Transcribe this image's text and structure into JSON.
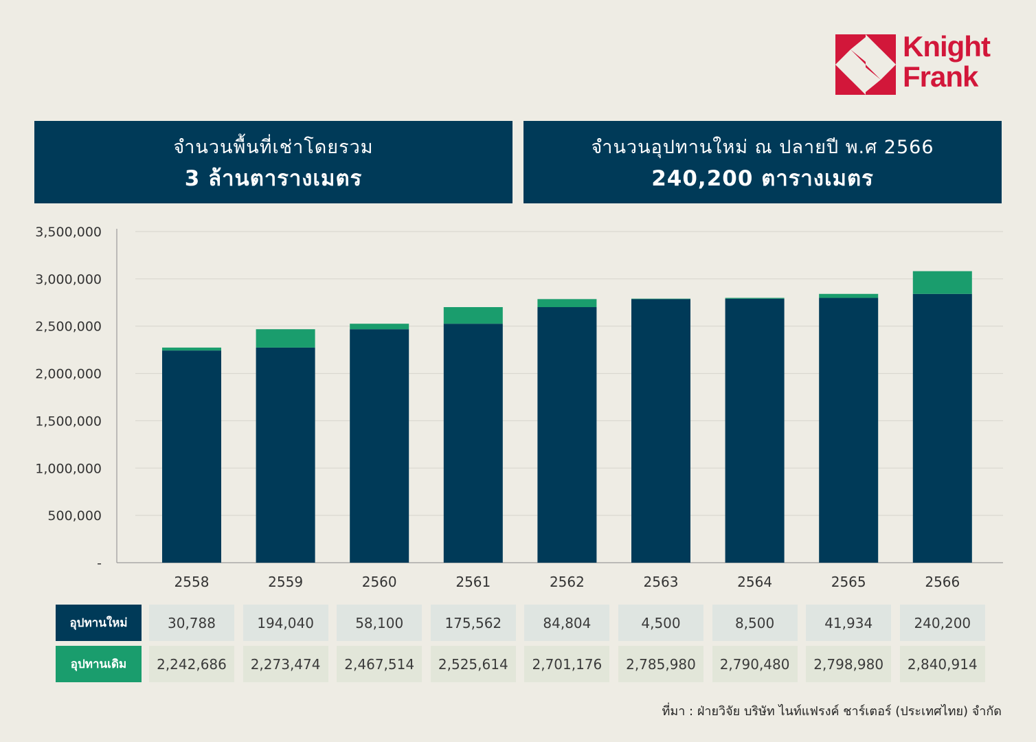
{
  "logo": {
    "line1": "Knight",
    "line2": "Frank",
    "color": "#d2173a"
  },
  "banners": {
    "left": {
      "line1": "จำนวนพื้นที่เช่าโดยรวม",
      "line2": "3 ล้านตารางเมตร"
    },
    "right": {
      "line1": "จำนวนอุปทานใหม่ ณ ปลายปี พ.ศ 2566",
      "line2": "240,200 ตารางเมตร"
    }
  },
  "colors": {
    "existing": "#003a58",
    "new": "#1a9d6d",
    "background": "#eeece4"
  },
  "chart_data": {
    "type": "bar",
    "stacked": true,
    "categories": [
      "2558",
      "2559",
      "2560",
      "2561",
      "2562",
      "2563",
      "2564",
      "2565",
      "2566"
    ],
    "series": [
      {
        "name": "อุปทานเดิม",
        "values": [
          2242686,
          2273474,
          2467514,
          2525614,
          2701176,
          2785980,
          2790480,
          2798980,
          2840914
        ]
      },
      {
        "name": "อุปทานใหม่",
        "values": [
          30788,
          194040,
          58100,
          175562,
          84804,
          4500,
          8500,
          41934,
          240200
        ]
      }
    ],
    "ylim": [
      0,
      3500000
    ],
    "yticks": [
      0,
      500000,
      1000000,
      1500000,
      2000000,
      2500000,
      3000000,
      3500000
    ],
    "ytick_labels": [
      "-",
      "500,000",
      "1,000,000",
      "1,500,000",
      "2,000,000",
      "2,500,000",
      "3,000,000",
      "3,500,000"
    ],
    "grid": true,
    "title": "",
    "xlabel": "",
    "ylabel": ""
  },
  "table": {
    "row_new_label": "อุปทานใหม่",
    "row_old_label": "อุปทานเดิม",
    "new_values": [
      "30,788",
      "194,040",
      "58,100",
      "175,562",
      "84,804",
      "4,500",
      "8,500",
      "41,934",
      "240,200"
    ],
    "old_values": [
      "2,242,686",
      "2,273,474",
      "2,467,514",
      "2,525,614",
      "2,701,176",
      "2,785,980",
      "2,790,480",
      "2,798,980",
      "2,840,914"
    ]
  },
  "source": "ที่มา : ฝ่ายวิจัย บริษัท ไนท์แฟรงค์ ชาร์เตอร์ (ประเทศไทย) จำกัด"
}
